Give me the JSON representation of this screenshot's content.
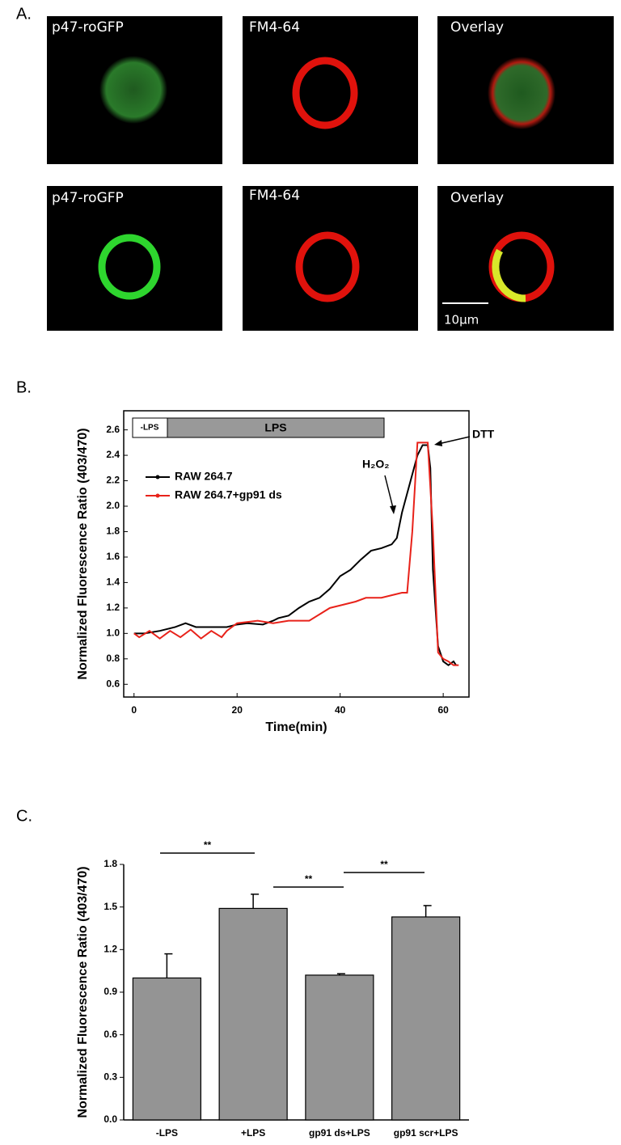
{
  "panel_labels": [
    "A.",
    "B.",
    "C."
  ],
  "images": {
    "row1": [
      "p47-roGFP",
      "FM4-64",
      "Overlay"
    ],
    "row2": [
      "p47-roGFP",
      "FM4-64",
      "Overlay"
    ],
    "scale_bar": "10μm"
  },
  "chart_data": [
    {
      "type": "line",
      "x_label": "Time(min)",
      "y_label": "Normalized Fluorescence Ratio (403/470)",
      "xlim": [
        -2,
        65
      ],
      "ylim": [
        0.5,
        2.75
      ],
      "xticks": [
        0,
        20,
        40,
        60
      ],
      "yticks": [
        0.6,
        0.8,
        {
          "value": 1.0,
          "label": "1.0"
        },
        1.2,
        1.4,
        1.6,
        1.8,
        {
          "value": 2.0,
          "label": "2.0"
        },
        2.2,
        2.4,
        2.6
      ],
      "treatment_bar": [
        "-LPS",
        "LPS"
      ],
      "annotations": [
        "H₂O₂",
        "DTT"
      ],
      "series": [
        {
          "name": "RAW 264.7",
          "color": "#000000",
          "x": [
            0,
            2,
            5,
            8,
            10,
            12,
            15,
            18,
            20,
            22,
            25,
            27,
            28,
            30,
            32,
            34,
            36,
            38,
            40,
            42,
            44,
            46,
            48,
            50,
            51,
            52,
            53,
            54,
            55,
            56,
            57,
            57.5,
            58,
            59,
            60,
            61,
            62,
            62.5
          ],
          "values": [
            1.0,
            1.0,
            1.02,
            1.05,
            1.08,
            1.05,
            1.05,
            1.05,
            1.07,
            1.08,
            1.07,
            1.1,
            1.12,
            1.14,
            1.2,
            1.25,
            1.28,
            1.35,
            1.45,
            1.5,
            1.58,
            1.65,
            1.67,
            1.7,
            1.75,
            1.95,
            2.1,
            2.25,
            2.4,
            2.48,
            2.48,
            2.3,
            1.5,
            0.9,
            0.78,
            0.75,
            0.78,
            0.75
          ]
        },
        {
          "name": "RAW 264.7+gp91 ds",
          "color": "#e8221a",
          "x": [
            0,
            1,
            3,
            5,
            7,
            9,
            11,
            13,
            15,
            17,
            18,
            20,
            24,
            27,
            30,
            34,
            36,
            38,
            40,
            43,
            45,
            48,
            50,
            52,
            53,
            54,
            55,
            56,
            57,
            58,
            59,
            60,
            61,
            62,
            63
          ],
          "values": [
            1.0,
            0.97,
            1.02,
            0.96,
            1.02,
            0.97,
            1.03,
            0.96,
            1.02,
            0.97,
            1.02,
            1.08,
            1.1,
            1.08,
            1.1,
            1.1,
            1.15,
            1.2,
            1.22,
            1.25,
            1.28,
            1.28,
            1.3,
            1.32,
            1.32,
            1.8,
            2.5,
            2.5,
            2.5,
            1.8,
            0.85,
            0.8,
            0.78,
            0.75,
            0.75
          ]
        }
      ]
    },
    {
      "type": "bar",
      "y_label": "Normalized Fluorescence Ratio (403/470)",
      "categories": [
        "-LPS",
        "+LPS",
        "gp91 ds+LPS",
        "gp91 scr+LPS"
      ],
      "values": [
        1.0,
        1.49,
        1.02,
        1.43
      ],
      "errors": [
        0.17,
        0.1,
        0.01,
        0.08
      ],
      "color": "#949494",
      "ylim": [
        0,
        1.8
      ],
      "yticks": [
        {
          "value": 0,
          "label": "0.0"
        },
        0.3,
        0.6,
        0.9,
        1.2,
        1.5,
        1.8
      ],
      "annotations": [
        "**",
        "**",
        "**"
      ]
    }
  ]
}
